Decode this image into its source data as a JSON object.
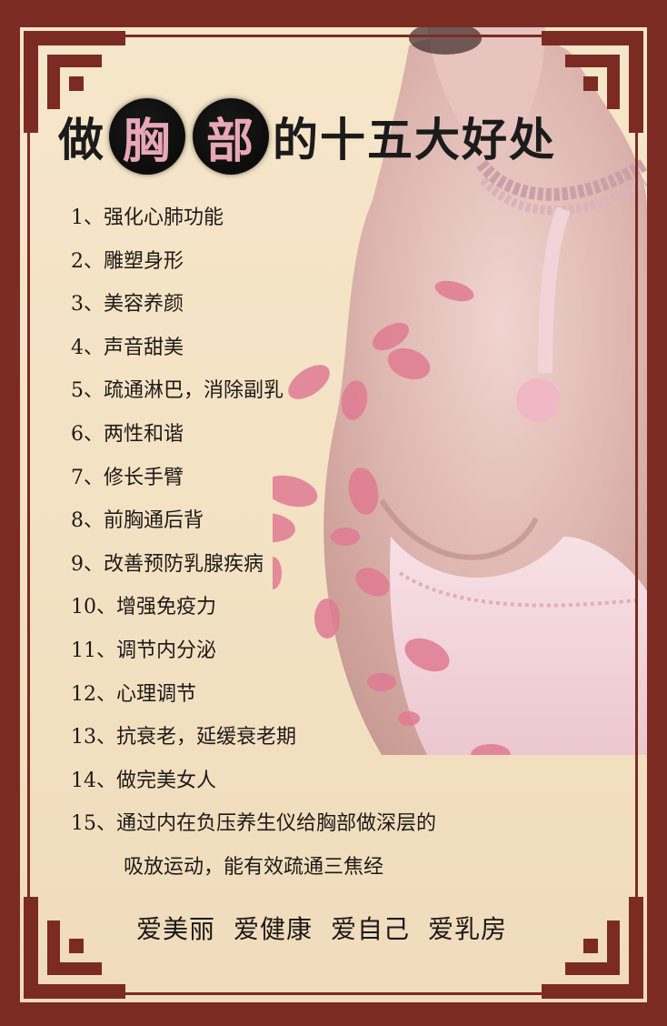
{
  "title": {
    "part1": "做",
    "circled1": "胸",
    "circled2": "部",
    "part2": "的十五大好处"
  },
  "benefits": [
    "1、强化心肺功能",
    "2、雕塑身形",
    "3、美容养颜",
    "4、声音甜美",
    "5、疏通淋巴，消除副乳",
    "6、两性和谐",
    "7、修长手臂",
    "8、前胸通后背",
    "9、改善预防乳腺疾病",
    "10、增强免疫力",
    "11、调节内分泌",
    "12、心理调节",
    "13、抗衰老，延缓衰老期",
    "14、做完美女人",
    "15、通过内在负压养生仪给胸部做深层的",
    "吸放运动，能有效疏通三焦经"
  ],
  "slogans": [
    "爱美丽",
    "爱健康",
    "爱自己",
    "爱乳房"
  ],
  "colors": {
    "frame": "#7c2b23",
    "background": "#f4e2c4",
    "title_text": "#1b1b1b",
    "circle_text": "#e8a7b8",
    "petal": "#e07b92"
  }
}
